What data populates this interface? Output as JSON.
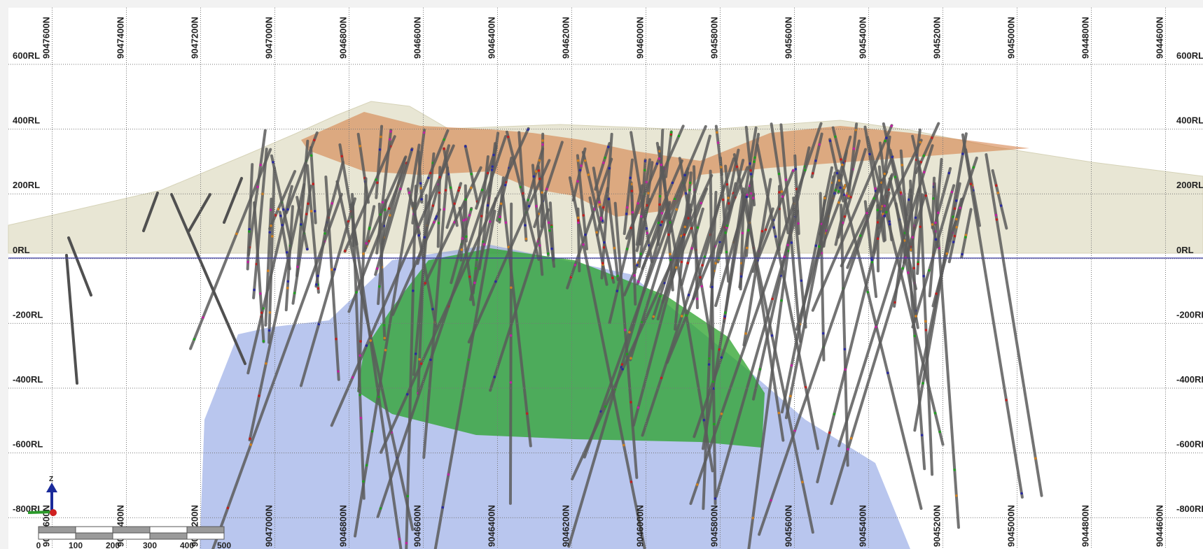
{
  "northing_labels": [
    "9047600N",
    "9047400N",
    "9047200N",
    "9047000N",
    "9046800N",
    "9046600N",
    "9046400N",
    "9046200N",
    "9046000N",
    "9045800N",
    "9045600N",
    "9045400N",
    "9045200N",
    "9045000N",
    "9044800N",
    "9044600N"
  ],
  "rl_labels": [
    "600RL",
    "400RL",
    "200RL",
    "0RL",
    "-200RL",
    "-400RL",
    "-600RL",
    "-800RL"
  ],
  "scale_bar": {
    "labels": [
      "0",
      "100",
      "200",
      "300",
      "400",
      "500"
    ]
  },
  "axis_gizmo": {
    "label": "Z"
  }
}
